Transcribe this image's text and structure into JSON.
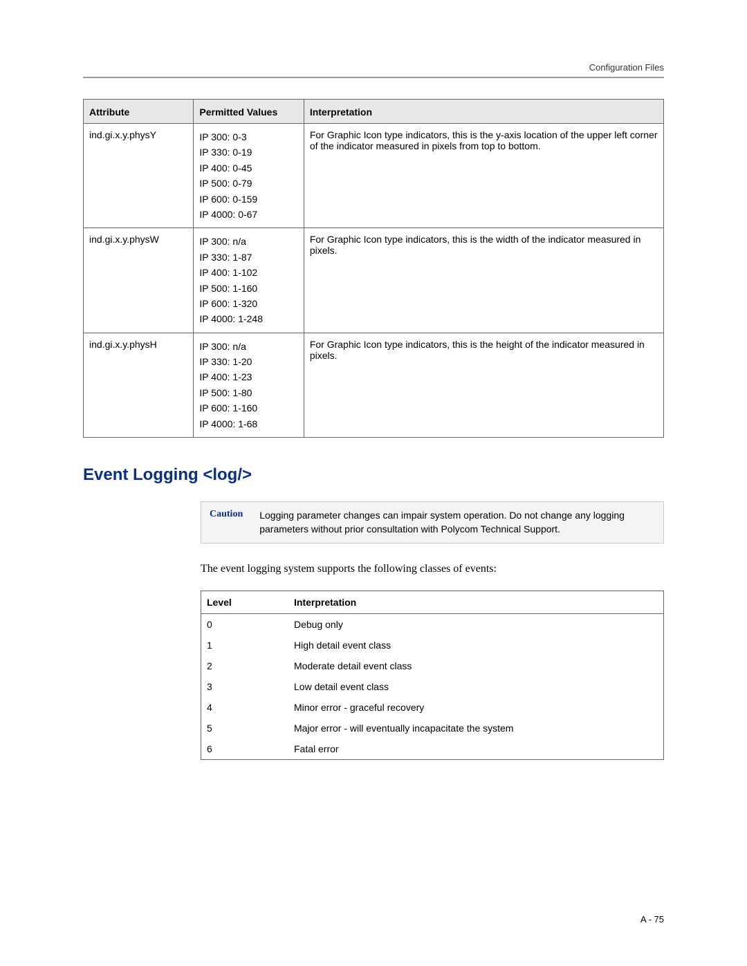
{
  "header": {
    "label": "Configuration Files"
  },
  "table1": {
    "columns": [
      "Attribute",
      "Permitted Values",
      "Interpretation"
    ],
    "rows": [
      {
        "attribute": "ind.gi.x.y.physY",
        "values": [
          "IP 300: 0-3",
          "IP 330: 0-19",
          "IP 400: 0-45",
          "IP 500: 0-79",
          "IP 600: 0-159",
          "IP 4000: 0-67"
        ],
        "interpretation": "For Graphic Icon type indicators, this is the y-axis location of the upper left corner of the indicator measured in pixels from top to bottom."
      },
      {
        "attribute": "ind.gi.x.y.physW",
        "values": [
          "IP 300: n/a",
          "IP 330: 1-87",
          "IP 400: 1-102",
          "IP 500: 1-160",
          "IP 600: 1-320",
          "IP 4000: 1-248"
        ],
        "interpretation": "For Graphic Icon type indicators, this is the width of the indicator measured in pixels."
      },
      {
        "attribute": "ind.gi.x.y.physH",
        "values": [
          "IP 300: n/a",
          "IP 330: 1-20",
          "IP 400: 1-23",
          "IP 500: 1-80",
          "IP 600: 1-160",
          "IP 4000: 1-68"
        ],
        "interpretation": "For Graphic Icon type indicators, this is the height of the indicator measured in pixels."
      }
    ]
  },
  "section": {
    "heading": "Event Logging <log/>"
  },
  "caution": {
    "label": "Caution",
    "text": "Logging parameter changes can impair system operation. Do not change any logging parameters without prior consultation with Polycom Technical Support."
  },
  "intro": "The event logging system supports the following classes of events:",
  "table2": {
    "columns": [
      "Level",
      "Interpretation"
    ],
    "rows": [
      {
        "level": "0",
        "interpretation": "Debug only"
      },
      {
        "level": "1",
        "interpretation": "High detail event class"
      },
      {
        "level": "2",
        "interpretation": "Moderate detail event class"
      },
      {
        "level": "3",
        "interpretation": "Low detail event class"
      },
      {
        "level": "4",
        "interpretation": "Minor error - graceful recovery"
      },
      {
        "level": "5",
        "interpretation": "Major error - will eventually incapacitate the system"
      },
      {
        "level": "6",
        "interpretation": "Fatal error"
      }
    ]
  },
  "footer": {
    "page_number": "A - 75"
  }
}
